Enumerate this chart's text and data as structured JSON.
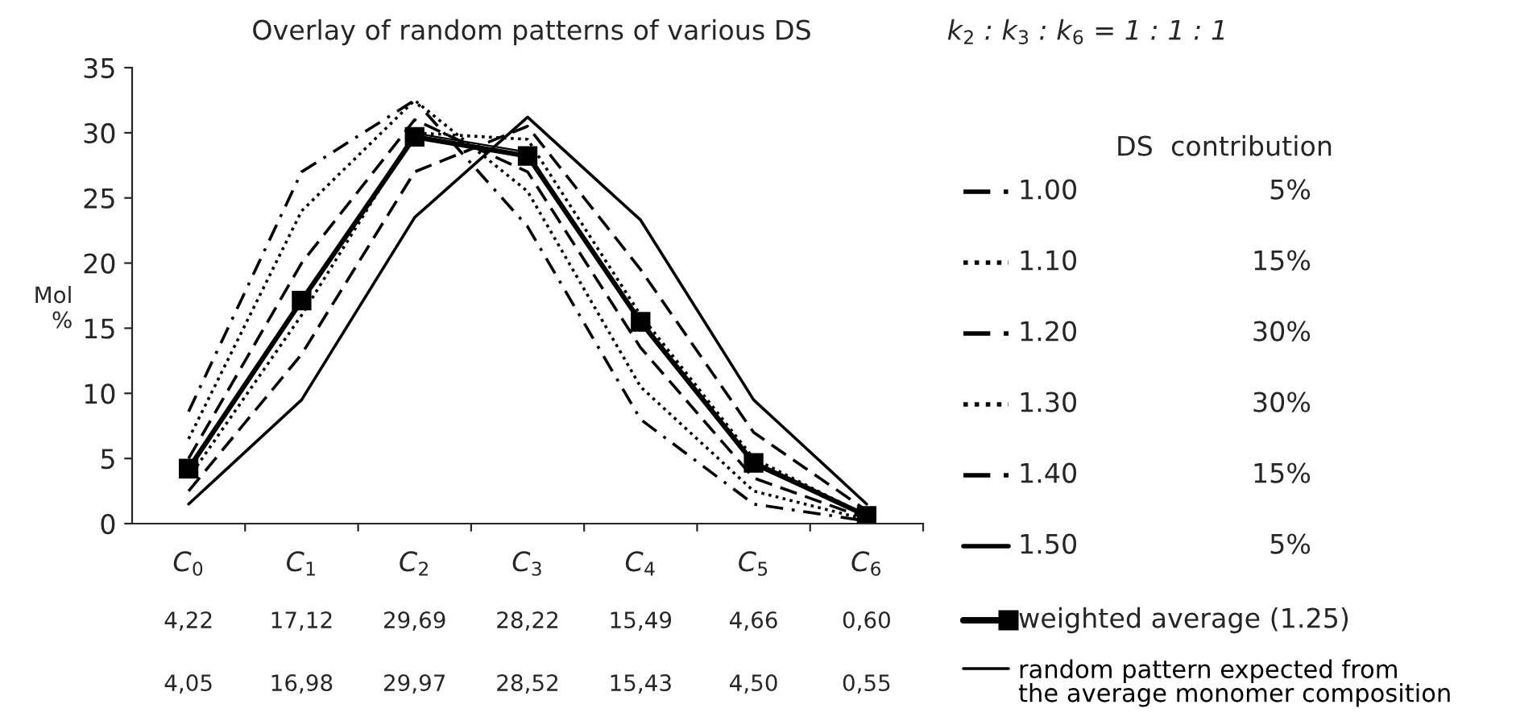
{
  "chart_data": {
    "type": "line",
    "title": "Overlay of random patterns of various DS",
    "ylabel": "Mol\n%",
    "legend_title": "DS  contribution",
    "categories": [
      "C$_{0}$",
      "C$_{1}$",
      "C$_{2}$",
      "C$_{3}$",
      "C$_{4}$",
      "C$_{5}$",
      "C$_{6}$"
    ],
    "ylim": [
      0,
      35
    ],
    "yticks": [
      0,
      5,
      10,
      15,
      20,
      25,
      30,
      35
    ],
    "grid": false,
    "legend": "right",
    "series": [
      {
        "name": "1.00",
        "color": "#000000",
        "line_style": "dashdot",
        "marker": "none",
        "values": [
          8.6,
          27,
          32.5,
          22.8,
          8,
          1.5,
          0.2
        ]
      },
      {
        "name": "1.10",
        "color": "#000000",
        "line_style": "dotted",
        "marker": "none",
        "values": [
          6.5,
          24,
          32.5,
          25.5,
          10.5,
          2.5,
          0.3
        ]
      },
      {
        "name": "1.20",
        "color": "#000000",
        "line_style": "dashed",
        "marker": "none",
        "values": [
          5,
          20,
          31,
          27,
          13.5,
          3.5,
          0.4
        ]
      },
      {
        "name": "1.30",
        "color": "#000000",
        "line_style": "dotted",
        "marker": "none",
        "values": [
          3.5,
          16,
          30,
          29.5,
          16,
          5,
          0.6
        ]
      },
      {
        "name": "1.40",
        "color": "#000000",
        "line_style": "dashed",
        "marker": "none",
        "values": [
          2.5,
          13,
          27,
          30.5,
          19.5,
          7,
          1
        ]
      },
      {
        "name": "1.50",
        "color": "#000000",
        "line_style": "solid",
        "marker": "none",
        "values": [
          1.5,
          9.5,
          23.5,
          31.2,
          23.3,
          9.5,
          1.5
        ]
      },
      {
        "name": "weighted average (1.25)",
        "color": "#000000",
        "line_style": "solid",
        "marker": "square",
        "values": [
          4.22,
          17.12,
          29.69,
          28.22,
          15.49,
          4.66,
          0.6
        ],
        "value_labels": [
          "4,22",
          "17,12",
          "29,69",
          "28,22",
          "15,49",
          "4,66",
          "0,60"
        ]
      },
      {
        "name": "random pattern expected from\nthe average monomer composition",
        "color": "#000000",
        "line_style": "solid",
        "marker": "none",
        "values": [
          4.05,
          16.98,
          29.97,
          28.52,
          15.43,
          4.5,
          0.55
        ],
        "value_labels": [
          "4,05",
          "16,98",
          "29,97",
          "28,52",
          "15,43",
          "4,50",
          "0,55"
        ]
      }
    ],
    "annotations": [
      "k$_{2}$ : k$_{3}$ : k$_{6}$ = 1 : 1 : 1",
      "5%",
      "15%",
      "30%",
      "30%",
      "15%",
      "5%"
    ]
  }
}
